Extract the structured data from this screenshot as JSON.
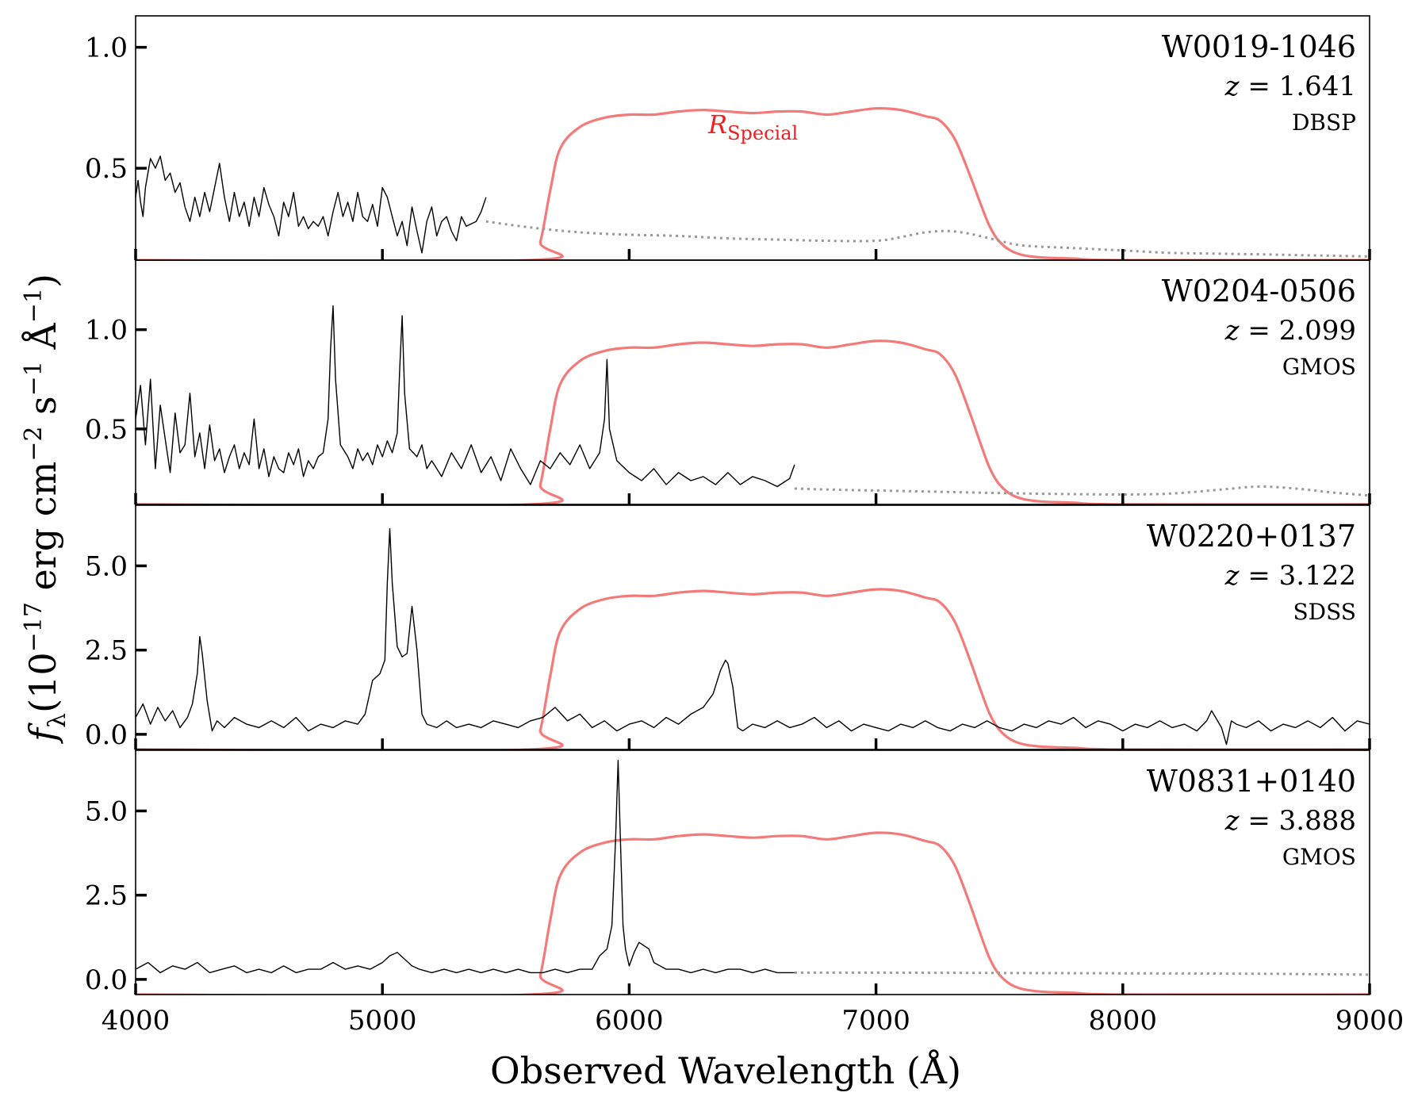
{
  "chart_data": {
    "type": "line",
    "xlabel": "Observed Wavelength (Å)",
    "ylabel": "fλ (10−17 erg cm−2 s−1 Å−1)",
    "ylabel_parts": {
      "symbol": "f",
      "subscript": "λ",
      "lead": "(10",
      "exp1": "−17",
      "mid1": " erg cm",
      "exp2": "−2",
      "mid2": " s",
      "exp3": "−1",
      "mid3": " Å",
      "exp4": "−1",
      "close": ")"
    },
    "xlim": [
      4000,
      9000
    ],
    "x_ticks": [
      4000,
      5000,
      6000,
      7000,
      8000,
      9000
    ],
    "x_tick_labels": [
      "4000",
      "5000",
      "6000",
      "7000",
      "8000",
      "9000"
    ],
    "grid": false,
    "colors": {
      "spectrum": "#000000",
      "filter": "#f47a7a",
      "filter_label": "#ee2020",
      "model": "#999999"
    },
    "filter_label_parts": {
      "base": "R",
      "subscript": "Special"
    },
    "filter_curve": {
      "x": [
        4000,
        5600,
        5640,
        5680,
        5720,
        5800,
        5900,
        6000,
        6100,
        6200,
        6300,
        6400,
        6500,
        6600,
        6700,
        6800,
        6900,
        7000,
        7100,
        7200,
        7260,
        7320,
        7380,
        7420,
        7460,
        7500,
        7560,
        7650,
        7800,
        8000,
        9000
      ],
      "t": [
        0.0,
        0.0,
        0.12,
        0.45,
        0.72,
        0.86,
        0.92,
        0.94,
        0.94,
        0.96,
        0.97,
        0.96,
        0.95,
        0.96,
        0.96,
        0.94,
        0.96,
        0.98,
        0.97,
        0.93,
        0.9,
        0.78,
        0.55,
        0.38,
        0.22,
        0.12,
        0.05,
        0.02,
        0.01,
        0.0,
        0.0
      ]
    },
    "panels": [
      {
        "name": "W0019-1046",
        "z_label": "z",
        "z_value": "= 1.641",
        "instrument": "DBSP",
        "ylim": [
          0.12,
          1.13
        ],
        "y_ticks": [
          0.5,
          1.0
        ],
        "y_tick_labels": [
          "0.5",
          "1.0"
        ],
        "filter_peak": 0.76,
        "spectrum_x": [
          4000,
          4010,
          4020,
          4030,
          4040,
          4060,
          4080,
          4100,
          4120,
          4140,
          4160,
          4180,
          4200,
          4220,
          4240,
          4260,
          4280,
          4300,
          4320,
          4340,
          4360,
          4380,
          4400,
          4420,
          4440,
          4460,
          4480,
          4500,
          4520,
          4540,
          4560,
          4580,
          4600,
          4620,
          4640,
          4660,
          4680,
          4700,
          4720,
          4740,
          4760,
          4780,
          4800,
          4820,
          4840,
          4860,
          4880,
          4900,
          4920,
          4940,
          4960,
          4980,
          5000,
          5020,
          5040,
          5060,
          5080,
          5100,
          5120,
          5140,
          5160,
          5180,
          5200,
          5220,
          5240,
          5260,
          5280,
          5300,
          5320,
          5340,
          5360,
          5380,
          5400,
          5420
        ],
        "spectrum_y": [
          0.38,
          0.45,
          0.36,
          0.3,
          0.42,
          0.54,
          0.5,
          0.55,
          0.45,
          0.48,
          0.4,
          0.44,
          0.34,
          0.28,
          0.38,
          0.3,
          0.4,
          0.32,
          0.42,
          0.52,
          0.38,
          0.28,
          0.4,
          0.3,
          0.36,
          0.26,
          0.38,
          0.3,
          0.42,
          0.35,
          0.3,
          0.22,
          0.36,
          0.3,
          0.4,
          0.26,
          0.3,
          0.25,
          0.28,
          0.26,
          0.3,
          0.22,
          0.32,
          0.4,
          0.3,
          0.36,
          0.28,
          0.4,
          0.3,
          0.28,
          0.35,
          0.26,
          0.42,
          0.38,
          0.3,
          0.22,
          0.28,
          0.18,
          0.34,
          0.24,
          0.15,
          0.28,
          0.34,
          0.22,
          0.28,
          0.3,
          0.24,
          0.2,
          0.3,
          0.26,
          0.27,
          0.28,
          0.32,
          0.38
        ],
        "model_x": [
          5420,
          5600,
          5800,
          6000,
          6200,
          6400,
          6600,
          6800,
          7000,
          7100,
          7200,
          7300,
          7400,
          7500,
          7600,
          7800,
          8000,
          8200,
          8500,
          9000
        ],
        "model_y": [
          0.28,
          0.255,
          0.235,
          0.225,
          0.22,
          0.21,
          0.205,
          0.2,
          0.2,
          0.215,
          0.235,
          0.24,
          0.225,
          0.2,
          0.18,
          0.17,
          0.16,
          0.15,
          0.145,
          0.135
        ]
      },
      {
        "name": "W0204-0506",
        "z_label": "z",
        "z_value": "= 2.099",
        "instrument": "GMOS",
        "ylim": [
          0.12,
          1.35
        ],
        "y_ticks": [
          0.5,
          1.0
        ],
        "y_tick_labels": [
          "0.5",
          "1.0"
        ],
        "filter_peak": 0.96,
        "spectrum_x": [
          4000,
          4020,
          4040,
          4060,
          4080,
          4100,
          4120,
          4140,
          4160,
          4180,
          4200,
          4220,
          4240,
          4260,
          4280,
          4300,
          4320,
          4340,
          4360,
          4380,
          4400,
          4420,
          4440,
          4460,
          4480,
          4500,
          4520,
          4540,
          4560,
          4580,
          4600,
          4620,
          4640,
          4660,
          4680,
          4700,
          4720,
          4740,
          4760,
          4780,
          4790,
          4800,
          4810,
          4830,
          4860,
          4880,
          4900,
          4920,
          4940,
          4960,
          4980,
          5000,
          5020,
          5040,
          5060,
          5070,
          5080,
          5090,
          5110,
          5140,
          5160,
          5180,
          5200,
          5240,
          5280,
          5320,
          5360,
          5400,
          5440,
          5480,
          5520,
          5560,
          5600,
          5640,
          5680,
          5720,
          5760,
          5800,
          5840,
          5880,
          5900,
          5910,
          5920,
          5950,
          6000,
          6050,
          6100,
          6150,
          6200,
          6250,
          6300,
          6350,
          6400,
          6450,
          6500,
          6550,
          6600,
          6650,
          6670
        ],
        "spectrum_y": [
          0.55,
          0.72,
          0.42,
          0.75,
          0.3,
          0.62,
          0.45,
          0.28,
          0.58,
          0.38,
          0.42,
          0.68,
          0.36,
          0.48,
          0.3,
          0.52,
          0.34,
          0.4,
          0.28,
          0.36,
          0.42,
          0.3,
          0.38,
          0.32,
          0.55,
          0.3,
          0.4,
          0.26,
          0.36,
          0.3,
          0.28,
          0.38,
          0.32,
          0.4,
          0.26,
          0.34,
          0.3,
          0.36,
          0.38,
          0.55,
          0.9,
          1.12,
          0.75,
          0.42,
          0.36,
          0.3,
          0.4,
          0.34,
          0.38,
          0.32,
          0.42,
          0.36,
          0.44,
          0.38,
          0.48,
          0.8,
          1.07,
          0.68,
          0.4,
          0.36,
          0.42,
          0.3,
          0.34,
          0.26,
          0.38,
          0.3,
          0.42,
          0.28,
          0.36,
          0.24,
          0.4,
          0.3,
          0.22,
          0.34,
          0.3,
          0.38,
          0.32,
          0.42,
          0.3,
          0.38,
          0.55,
          0.85,
          0.5,
          0.34,
          0.28,
          0.24,
          0.3,
          0.22,
          0.28,
          0.24,
          0.26,
          0.22,
          0.28,
          0.22,
          0.26,
          0.24,
          0.21,
          0.25,
          0.32
        ],
        "model_x": [
          6670,
          6800,
          7000,
          7200,
          7400,
          7600,
          7800,
          8000,
          8200,
          8400,
          8550,
          8700,
          8850,
          9000
        ],
        "model_y": [
          0.2,
          0.195,
          0.19,
          0.185,
          0.18,
          0.175,
          0.172,
          0.17,
          0.175,
          0.195,
          0.21,
          0.2,
          0.18,
          0.165
        ]
      },
      {
        "name": "W0220+0137",
        "z_label": "z",
        "z_value": "= 3.122",
        "instrument": "SDSS",
        "ylim": [
          -0.45,
          6.8
        ],
        "y_ticks": [
          0.0,
          2.5,
          5.0
        ],
        "y_tick_labels": [
          "0.0",
          "2.5",
          "5.0"
        ],
        "filter_peak": 4.4,
        "spectrum_x": [
          4000,
          4030,
          4060,
          4090,
          4120,
          4150,
          4180,
          4210,
          4230,
          4250,
          4260,
          4270,
          4290,
          4310,
          4330,
          4360,
          4400,
          4450,
          4500,
          4550,
          4600,
          4650,
          4700,
          4750,
          4800,
          4850,
          4900,
          4930,
          4960,
          4990,
          5010,
          5020,
          5030,
          5040,
          5060,
          5080,
          5100,
          5120,
          5140,
          5160,
          5180,
          5220,
          5260,
          5300,
          5350,
          5400,
          5450,
          5500,
          5550,
          5600,
          5650,
          5700,
          5750,
          5800,
          5850,
          5900,
          5950,
          6000,
          6050,
          6100,
          6150,
          6200,
          6250,
          6300,
          6340,
          6370,
          6390,
          6400,
          6420,
          6440,
          6460,
          6500,
          6550,
          6600,
          6650,
          6700,
          6750,
          6800,
          6850,
          6900,
          6950,
          7000,
          7050,
          7100,
          7150,
          7200,
          7250,
          7300,
          7350,
          7400,
          7450,
          7500,
          7550,
          7600,
          7650,
          7700,
          7750,
          7800,
          7850,
          7900,
          7950,
          8000,
          8050,
          8100,
          8150,
          8200,
          8250,
          8300,
          8340,
          8360,
          8400,
          8420,
          8440,
          8460,
          8500,
          8550,
          8600,
          8650,
          8700,
          8750,
          8800,
          8850,
          8900,
          8950,
          9000
        ],
        "spectrum_y": [
          0.5,
          0.9,
          0.3,
          0.8,
          0.4,
          0.7,
          0.2,
          0.5,
          0.9,
          1.8,
          2.9,
          2.4,
          1.0,
          0.1,
          0.4,
          0.2,
          0.5,
          0.3,
          0.2,
          0.4,
          0.2,
          0.5,
          0.1,
          0.3,
          0.2,
          0.4,
          0.3,
          0.6,
          1.6,
          1.8,
          2.2,
          4.5,
          6.1,
          4.5,
          2.6,
          2.3,
          2.4,
          3.8,
          2.5,
          0.6,
          0.3,
          0.2,
          0.4,
          0.2,
          0.3,
          0.2,
          0.4,
          0.3,
          0.2,
          0.4,
          0.5,
          0.8,
          0.4,
          0.6,
          0.2,
          0.4,
          0.1,
          0.3,
          0.4,
          0.2,
          0.5,
          0.3,
          0.6,
          0.8,
          1.2,
          1.9,
          2.2,
          2.1,
          1.4,
          0.2,
          0.1,
          0.3,
          0.2,
          0.4,
          0.2,
          0.3,
          0.5,
          0.2,
          0.4,
          0.1,
          0.3,
          0.2,
          0.1,
          0.3,
          0.2,
          0.4,
          0.2,
          0.1,
          0.3,
          0.2,
          0.4,
          0.2,
          0.1,
          0.3,
          0.2,
          0.4,
          0.3,
          0.5,
          0.2,
          0.4,
          0.3,
          0.1,
          0.3,
          0.2,
          0.4,
          0.2,
          0.3,
          0.1,
          0.4,
          0.7,
          0.2,
          -0.3,
          0.4,
          0.3,
          0.2,
          0.4,
          0.1,
          0.3,
          0.2,
          0.4,
          0.2,
          0.5,
          0.1,
          0.4,
          0.3
        ]
      },
      {
        "name": "W0831+0140",
        "z_label": "z",
        "z_value": "= 3.888",
        "instrument": "GMOS",
        "ylim": [
          -0.45,
          6.8
        ],
        "y_ticks": [
          0.0,
          2.5,
          5.0
        ],
        "y_tick_labels": [
          "0.0",
          "2.5",
          "5.0"
        ],
        "filter_peak": 4.45,
        "spectrum_x": [
          4000,
          4050,
          4100,
          4150,
          4200,
          4250,
          4300,
          4350,
          4400,
          4450,
          4500,
          4550,
          4600,
          4650,
          4700,
          4750,
          4800,
          4850,
          4900,
          4950,
          5000,
          5030,
          5060,
          5090,
          5120,
          5150,
          5200,
          5250,
          5300,
          5350,
          5400,
          5450,
          5500,
          5550,
          5600,
          5650,
          5700,
          5750,
          5800,
          5850,
          5880,
          5910,
          5930,
          5945,
          5955,
          5965,
          5975,
          5985,
          6000,
          6020,
          6040,
          6060,
          6080,
          6100,
          6150,
          6200,
          6250,
          6300,
          6350,
          6400,
          6450,
          6500,
          6550,
          6600,
          6670
        ],
        "spectrum_y": [
          0.3,
          0.5,
          0.2,
          0.4,
          0.3,
          0.5,
          0.2,
          0.3,
          0.4,
          0.2,
          0.3,
          0.2,
          0.4,
          0.2,
          0.3,
          0.3,
          0.5,
          0.3,
          0.4,
          0.3,
          0.5,
          0.7,
          0.8,
          0.6,
          0.4,
          0.3,
          0.2,
          0.3,
          0.2,
          0.3,
          0.2,
          0.3,
          0.2,
          0.3,
          0.2,
          0.2,
          0.3,
          0.2,
          0.3,
          0.3,
          0.7,
          0.9,
          1.6,
          4.2,
          6.5,
          4.0,
          1.6,
          0.9,
          0.4,
          0.8,
          1.1,
          1.0,
          0.9,
          0.5,
          0.3,
          0.3,
          0.2,
          0.3,
          0.2,
          0.3,
          0.3,
          0.2,
          0.3,
          0.2,
          0.2
        ],
        "model_x": [
          6670,
          7000,
          7500,
          8000,
          8500,
          9000
        ],
        "model_y": [
          0.2,
          0.2,
          0.19,
          0.18,
          0.17,
          0.14
        ]
      }
    ]
  }
}
